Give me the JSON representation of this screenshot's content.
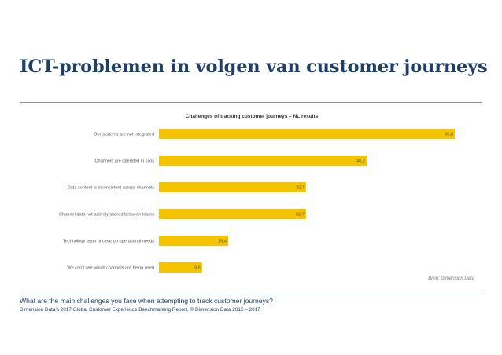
{
  "slide": {
    "title": "ICT-problemen in volgen van customer journeys",
    "question": "What are the main challenges you face when attempting to track customer journeys?",
    "source_note": "Dimension Data’s 2017 Global Customer Experience Benchmarking Report, © Dimension Data 2015 – 2017"
  },
  "colors": {
    "title": "#1f3f66",
    "bar": "#f5c400",
    "rule": "#7f95ad",
    "text": "#555555"
  },
  "chart_data": {
    "type": "bar",
    "orientation": "horizontal",
    "title": "Challenges of tracking customer journeys – NL results",
    "categories": [
      "Our systems are not integrated",
      "Channels are operated in silos",
      "Data content is inconsistent across channels",
      "Channel data not actively shared between teams",
      "Technology team unclear on operational needs",
      "We can’t see which channels are being used"
    ],
    "values": [
      65.8,
      46.2,
      32.7,
      32.7,
      15.4,
      9.6
    ],
    "value_labels": [
      "65,8",
      "46,2",
      "32,7",
      "32,7",
      "15,4",
      "9,6"
    ],
    "xlim": [
      0,
      70
    ],
    "source_label": "Bron: Dimension Data",
    "legend": "none"
  }
}
